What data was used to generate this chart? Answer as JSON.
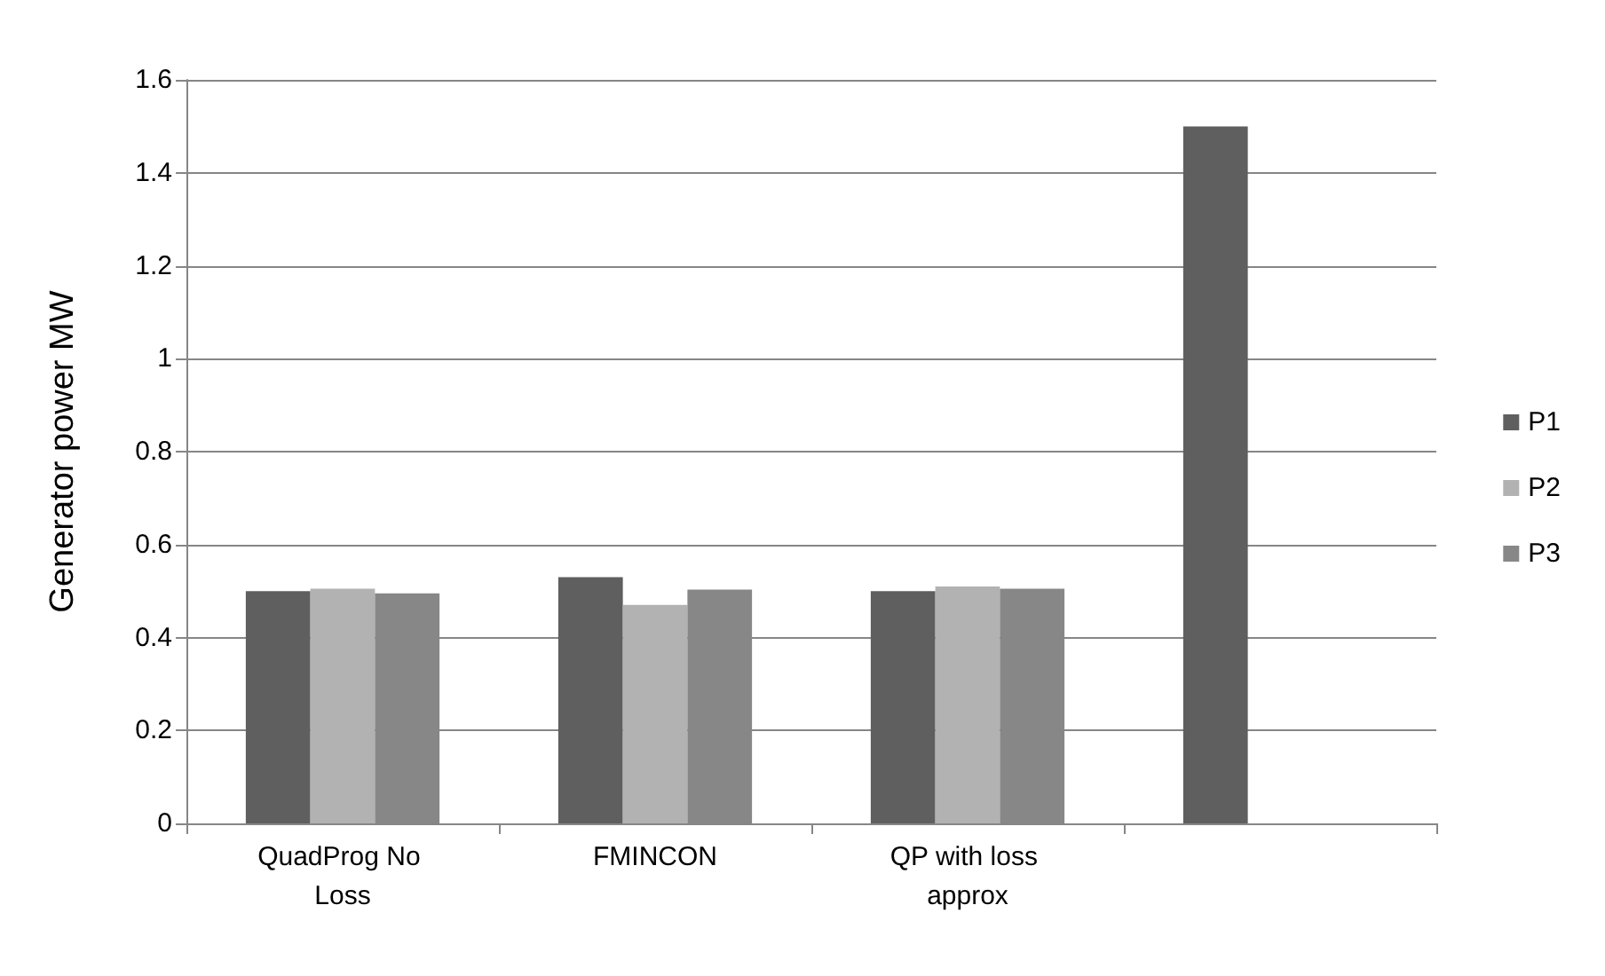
{
  "chart_data": {
    "type": "bar",
    "ylabel": "Generator power MW",
    "categories": [
      "QuadProg No Loss",
      "FMINCON",
      "QP with loss approx",
      null
    ],
    "series": [
      {
        "name": "P1",
        "color": "#5f5f5f",
        "values": [
          0.5,
          0.53,
          0.5,
          1.5
        ]
      },
      {
        "name": "P2",
        "color": "#b2b2b2",
        "values": [
          0.505,
          0.47,
          0.51,
          null
        ]
      },
      {
        "name": "P3",
        "color": "#878787",
        "values": [
          0.495,
          0.503,
          0.505,
          null
        ]
      }
    ],
    "ylim": [
      0,
      1.6
    ],
    "yticks": [
      0,
      0.2,
      0.4,
      0.6,
      0.8,
      1,
      1.2,
      1.4,
      1.6
    ],
    "grid": "y",
    "legend": "right"
  }
}
